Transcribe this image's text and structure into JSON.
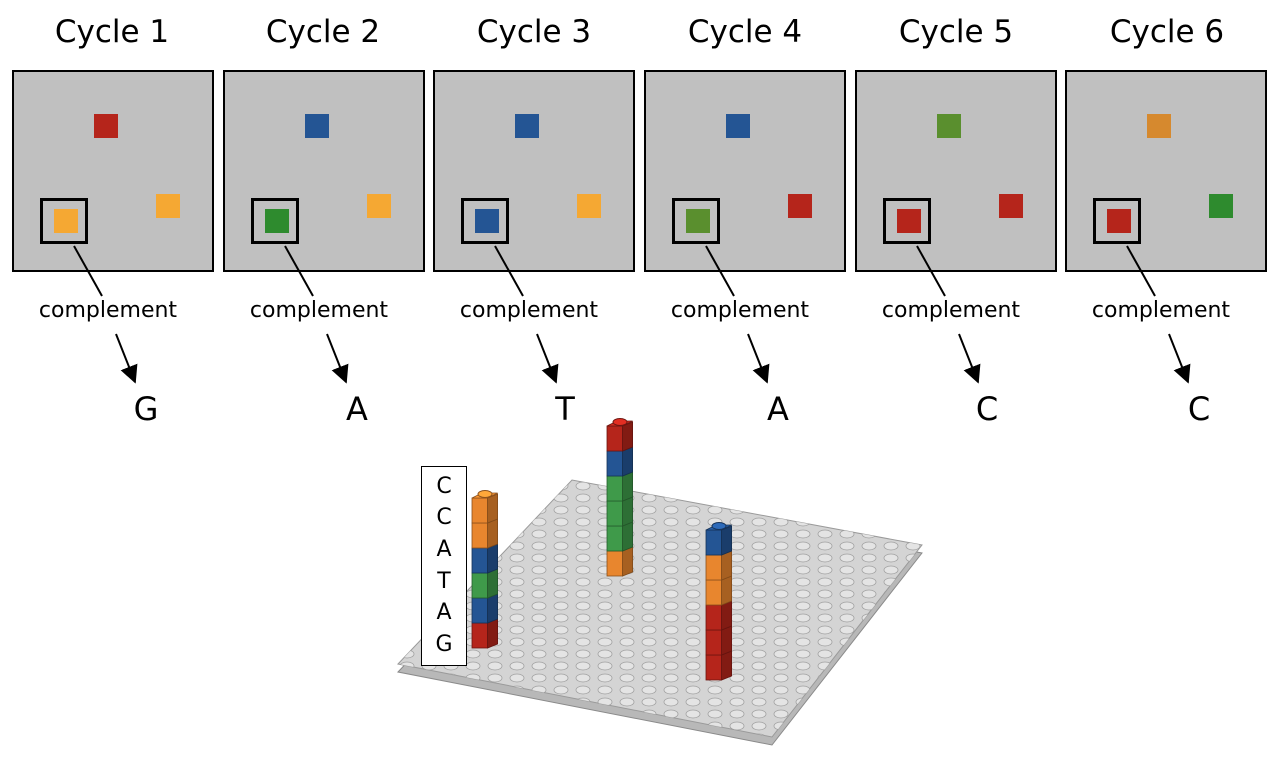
{
  "cycles": [
    {
      "title": "Cycle 1",
      "label": "complement",
      "base": "G",
      "spots": [
        {
          "pos": "top",
          "color": "#b5251b"
        },
        {
          "pos": "right",
          "color": "#f5a833"
        },
        {
          "pos": "boxed",
          "color": "#f5a833"
        }
      ]
    },
    {
      "title": "Cycle 2",
      "label": "complement",
      "base": "A",
      "spots": [
        {
          "pos": "top",
          "color": "#245594"
        },
        {
          "pos": "right",
          "color": "#f5a833"
        },
        {
          "pos": "boxed",
          "color": "#2e8b2e"
        }
      ]
    },
    {
      "title": "Cycle 3",
      "label": "complement",
      "base": "T",
      "spots": [
        {
          "pos": "top",
          "color": "#245594"
        },
        {
          "pos": "right",
          "color": "#f5a833"
        },
        {
          "pos": "boxed",
          "color": "#245594"
        }
      ]
    },
    {
      "title": "Cycle 4",
      "label": "complement",
      "base": "A",
      "spots": [
        {
          "pos": "top",
          "color": "#245594"
        },
        {
          "pos": "right",
          "color": "#b5251b"
        },
        {
          "pos": "boxed",
          "color": "#5a8f2e"
        }
      ]
    },
    {
      "title": "Cycle 5",
      "label": "complement",
      "base": "C",
      "spots": [
        {
          "pos": "top",
          "color": "#5a8f2e"
        },
        {
          "pos": "right",
          "color": "#b5251b"
        },
        {
          "pos": "boxed",
          "color": "#b5251b"
        }
      ]
    },
    {
      "title": "Cycle 6",
      "label": "complement",
      "base": "C",
      "spots": [
        {
          "pos": "top",
          "color": "#d6892e"
        },
        {
          "pos": "right",
          "color": "#2e8b2e"
        },
        {
          "pos": "boxed",
          "color": "#b5251b"
        }
      ]
    }
  ],
  "sequence": [
    "C",
    "C",
    "A",
    "T",
    "A",
    "G"
  ],
  "colors": {
    "red": "#b5251b",
    "blue": "#245594",
    "green": "#3f9a4a",
    "orange": "#e8862e",
    "panel_bg": "#c0c0c0",
    "baseplate": "#d4d4d4"
  },
  "stacks": [
    {
      "name": "left-stack",
      "bricks_bottom_to_top": [
        "red",
        "blue",
        "green",
        "blue",
        "orange",
        "orange"
      ]
    },
    {
      "name": "middle-stack",
      "bricks_bottom_to_top": [
        "orange",
        "green",
        "green",
        "green",
        "blue",
        "red"
      ]
    },
    {
      "name": "right-stack",
      "bricks_bottom_to_top": [
        "red",
        "red",
        "red",
        "orange",
        "orange",
        "blue"
      ]
    }
  ]
}
